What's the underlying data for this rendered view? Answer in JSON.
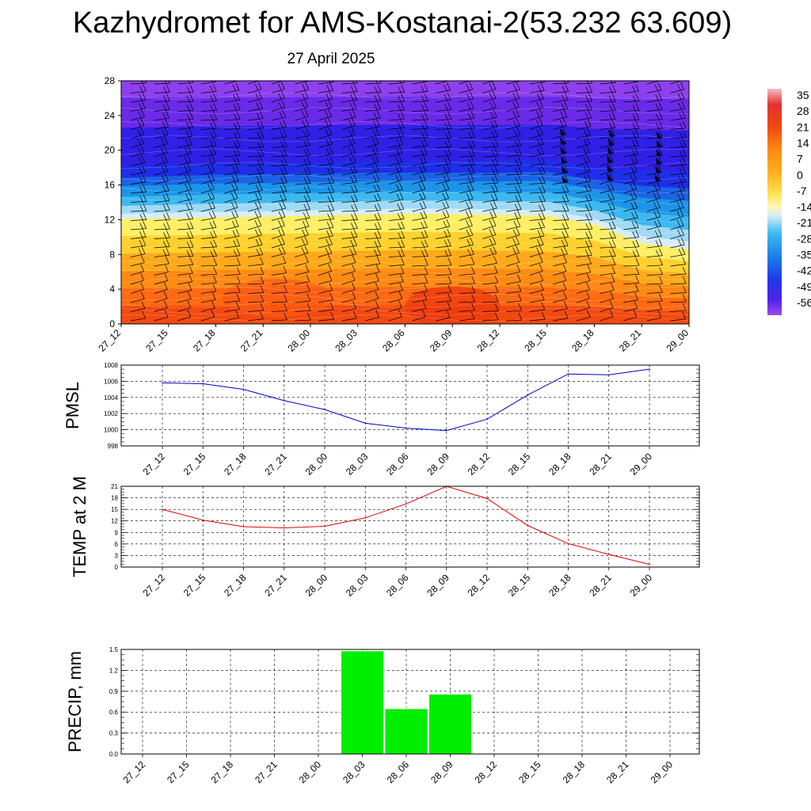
{
  "title": "Kazhydromet for AMS-Kostanai-2(53.232 63.609)",
  "subtitle": "27 April 2025",
  "chart_data": [
    {
      "type": "heatmap",
      "name": "vertical-cross-section",
      "x": [
        "27_12",
        "27_15",
        "27_18",
        "27_21",
        "28_00",
        "28_03",
        "28_06",
        "28_09",
        "28_12",
        "28_15",
        "28_18",
        "28_21",
        "29_00"
      ],
      "y_ticks": [
        0,
        4,
        8,
        12,
        16,
        20,
        24,
        28
      ],
      "ylim": [
        0,
        28
      ],
      "colorbar_labels": [
        "35",
        "28",
        "21",
        "14",
        "7",
        "0",
        "-7",
        "-14",
        "-21",
        "-28",
        "-35",
        "-42",
        "-49",
        "-56"
      ],
      "freezing_level": [
        12.1,
        12.2,
        12.3,
        12.4,
        12.5,
        12.6,
        12.7,
        12.7,
        12.6,
        12.5,
        11.5,
        9.3,
        8.6
      ],
      "tropopause_level": [
        18.2,
        18.4,
        18.6,
        18.6,
        18.7,
        18.8,
        18.8,
        18.8,
        18.8,
        19.0,
        18.0,
        17.8,
        17.6
      ],
      "colors": {
        "warm": [
          "#ffef66",
          "#ffd12e",
          "#ffa91a",
          "#ff8a14",
          "#ff6a12",
          "#f24a10"
        ],
        "cold": [
          "#d6eef9",
          "#9fdaf5",
          "#3cb8f0",
          "#1c95e8",
          "#1a63e6",
          "#1f2ee8",
          "#3020e6",
          "#6a2ae8",
          "#8e40ee"
        ]
      }
    },
    {
      "type": "line",
      "name": "pmsl",
      "ylabel": "PMSL",
      "categories": [
        "27_12",
        "27_15",
        "27_18",
        "27_21",
        "28_00",
        "28_03",
        "28_06",
        "28_09",
        "28_12",
        "28_15",
        "28_18",
        "28_21",
        "29_00"
      ],
      "values": [
        1005.8,
        1005.7,
        1005.0,
        1003.6,
        1002.5,
        1000.8,
        1000.2,
        999.9,
        1001.3,
        1004.3,
        1006.9,
        1006.8,
        1007.5
      ],
      "ylim": [
        998,
        1008
      ],
      "y_ticks": [
        "998",
        "1000",
        "1002",
        "1004",
        "1006",
        "1008"
      ],
      "color": "#0000cc",
      "grid": true
    },
    {
      "type": "line",
      "name": "temp-2m",
      "ylabel": "TEMP at 2 M",
      "categories": [
        "27_12",
        "27_15",
        "27_18",
        "27_21",
        "28_00",
        "28_03",
        "28_06",
        "28_09",
        "28_12",
        "28_15",
        "28_18",
        "28_21",
        "29_00"
      ],
      "values": [
        15.0,
        12.2,
        10.5,
        10.2,
        10.6,
        12.8,
        16.4,
        21.0,
        17.8,
        10.8,
        6.1,
        3.3,
        0.7
      ],
      "ylim": [
        0,
        21
      ],
      "y_ticks": [
        "0",
        "3",
        "6",
        "9",
        "12",
        "15",
        "18",
        "21"
      ],
      "color": "#e00000",
      "grid": true
    },
    {
      "type": "bar",
      "name": "precip",
      "ylabel": "PRECIP, mm",
      "categories": [
        "27_12",
        "27_15",
        "27_18",
        "27_21",
        "28_00",
        "28_03",
        "28_06",
        "28_09",
        "28_12",
        "28_15",
        "28_18",
        "28_21",
        "29_00"
      ],
      "values": [
        0,
        0,
        0,
        0,
        0,
        1.48,
        0.65,
        0.86,
        0,
        0,
        0,
        0,
        0
      ],
      "ylim": [
        0,
        1.5
      ],
      "y_ticks": [
        "0.0",
        "0.3",
        "0.6",
        "0.9",
        "1.2",
        "1.5"
      ],
      "color": "#00ee00",
      "grid": true
    }
  ]
}
